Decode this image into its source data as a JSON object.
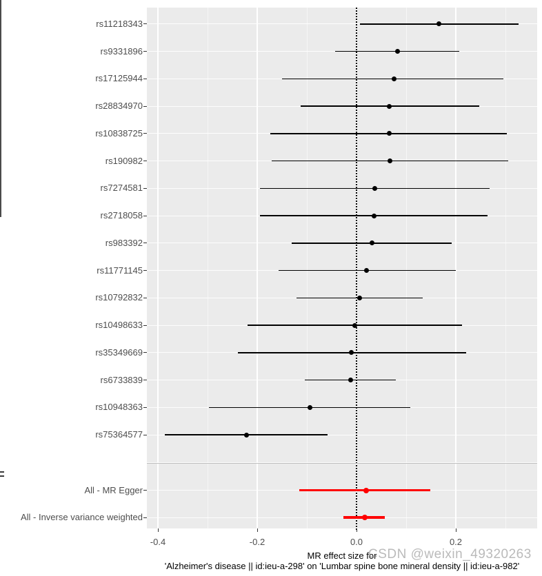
{
  "watermark": "CSDN @weixin_49320263",
  "chart_data": {
    "type": "forest",
    "title": "",
    "xlabel_line1": "MR effect size for",
    "xlabel_line2": "'Alzheimer's disease || id:ieu-a-298' on 'Lumbar spine bone mineral density || id:ieu-a-982'",
    "x_axis": {
      "ticks": [
        -0.4,
        -0.2,
        0.0,
        0.2
      ],
      "tick_labels": [
        "-0.4",
        "-0.2",
        "0.0",
        "0.2"
      ],
      "minor_ticks": [
        -0.3,
        -0.1,
        0.1,
        0.3
      ],
      "xlim": [
        -0.422,
        0.364
      ]
    },
    "zero_reference_line": 0.0,
    "legend_position": "none",
    "grid": true,
    "colors": {
      "snp": "#000000",
      "summary": "#FF0000",
      "panel_background": "#EBEBEB",
      "gridline": "#FFFFFF",
      "separator": "#BEBEBE",
      "axis_text": "#4D4D4D"
    },
    "rows": [
      {
        "label": "rs11218343",
        "group": "snp",
        "estimate": 0.166,
        "ci_low": 0.007,
        "ci_high": 0.327
      },
      {
        "label": "rs9331896",
        "group": "snp",
        "estimate": 0.082,
        "ci_low": -0.043,
        "ci_high": 0.207
      },
      {
        "label": "rs17125944",
        "group": "snp",
        "estimate": 0.075,
        "ci_low": -0.15,
        "ci_high": 0.296
      },
      {
        "label": "rs28834970",
        "group": "snp",
        "estimate": 0.066,
        "ci_low": -0.113,
        "ci_high": 0.247
      },
      {
        "label": "rs10838725",
        "group": "snp",
        "estimate": 0.066,
        "ci_low": -0.174,
        "ci_high": 0.303
      },
      {
        "label": "rs190982",
        "group": "snp",
        "estimate": 0.067,
        "ci_low": -0.171,
        "ci_high": 0.305
      },
      {
        "label": "rs7274581",
        "group": "snp",
        "estimate": 0.037,
        "ci_low": -0.194,
        "ci_high": 0.268
      },
      {
        "label": "rs2718058",
        "group": "snp",
        "estimate": 0.035,
        "ci_low": -0.195,
        "ci_high": 0.264
      },
      {
        "label": "rs983392",
        "group": "snp",
        "estimate": 0.031,
        "ci_low": -0.131,
        "ci_high": 0.192
      },
      {
        "label": "rs11771145",
        "group": "snp",
        "estimate": 0.02,
        "ci_low": -0.157,
        "ci_high": 0.2
      },
      {
        "label": "rs10792832",
        "group": "snp",
        "estimate": 0.006,
        "ci_low": -0.121,
        "ci_high": 0.133
      },
      {
        "label": "rs10498633",
        "group": "snp",
        "estimate": -0.003,
        "ci_low": -0.219,
        "ci_high": 0.213
      },
      {
        "label": "rs35349669",
        "group": "snp",
        "estimate": -0.01,
        "ci_low": -0.239,
        "ci_high": 0.221
      },
      {
        "label": "rs6733839",
        "group": "snp",
        "estimate": -0.012,
        "ci_low": -0.104,
        "ci_high": 0.079
      },
      {
        "label": "rs10948363",
        "group": "snp",
        "estimate": -0.094,
        "ci_low": -0.297,
        "ci_high": 0.108
      },
      {
        "label": "rs75364577",
        "group": "snp",
        "estimate": -0.222,
        "ci_low": -0.386,
        "ci_high": -0.058
      },
      {
        "label": "All - MR Egger",
        "group": "summary",
        "estimate": 0.019,
        "ci_low": -0.115,
        "ci_high": 0.149
      },
      {
        "label": "All - Inverse variance weighted",
        "group": "summary",
        "estimate": 0.016,
        "ci_low": -0.026,
        "ci_high": 0.057
      }
    ]
  }
}
